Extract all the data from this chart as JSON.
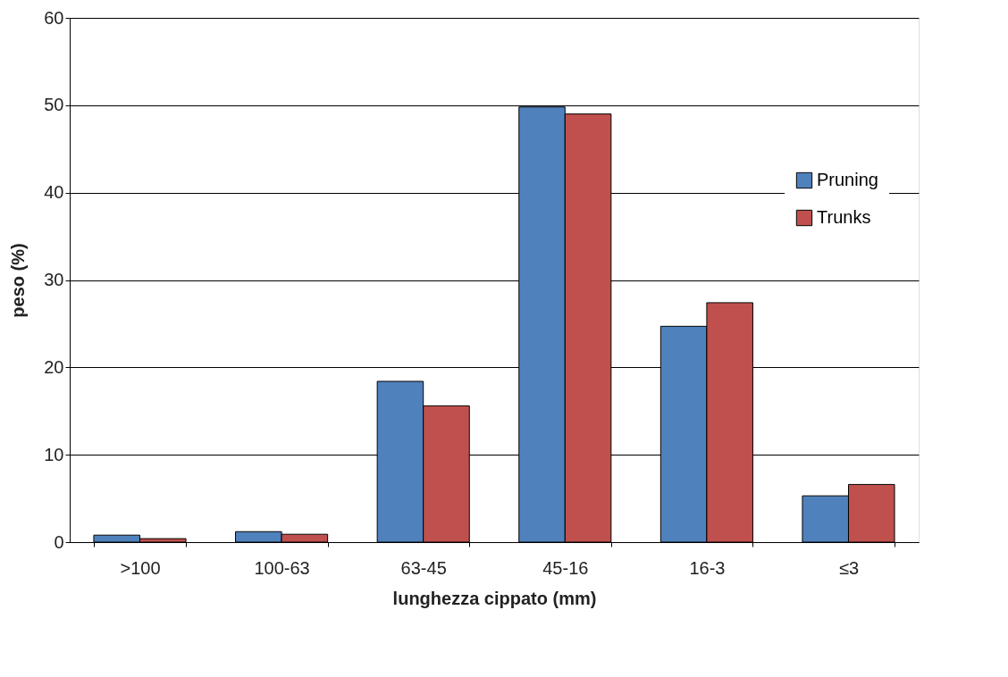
{
  "chart_data": {
    "type": "bar",
    "xlabel": "lunghezza cippato (mm)",
    "ylabel": "peso (%)",
    "categories": [
      ">100",
      "100-63",
      "63-45",
      "45-16",
      "16-3",
      "≤3"
    ],
    "series": [
      {
        "name": "Pruning",
        "color": "#4f81bd",
        "values": [
          0.8,
          1.2,
          18.4,
          49.8,
          24.7,
          5.3
        ]
      },
      {
        "name": "Trunks",
        "color": "#c0504d",
        "values": [
          0.4,
          0.9,
          15.6,
          49.0,
          27.4,
          6.6
        ]
      }
    ],
    "ylim": [
      0,
      60
    ],
    "yticks": [
      0,
      10,
      20,
      30,
      40,
      50,
      60
    ],
    "grid": "y",
    "legend": "top right"
  }
}
